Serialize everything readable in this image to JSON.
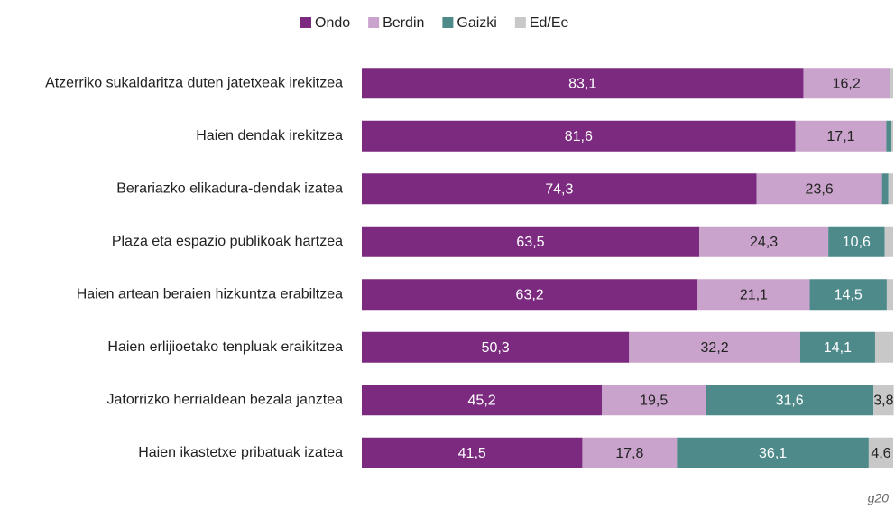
{
  "chart_data": {
    "type": "stacked-bar-horizontal",
    "categories": [
      "Atzerriko sukaldaritza duten jatetxeak irekitzea",
      "Haien dendak irekitzea",
      "Berariazko elikadura-dendak izatea",
      "Plaza eta espazio publikoak hartzea",
      "Haien artean beraien hizkuntza erabiltzea",
      "Haien erlijioetako tenpluak eraikitzea",
      "Jatorrizko herrialdean bezala janztea",
      "Haien ikastetxe pribatuak izatea"
    ],
    "series": [
      {
        "name": "Ondo",
        "color": "#7b2a7f",
        "values": [
          83.1,
          81.6,
          74.3,
          63.5,
          63.2,
          50.3,
          45.2,
          41.5
        ],
        "value_labels": [
          "83,1",
          "81,6",
          "74,3",
          "63,5",
          "63,2",
          "50,3",
          "45,2",
          "41,5"
        ]
      },
      {
        "name": "Berdin",
        "color": "#c9a3cc",
        "values": [
          16.2,
          17.1,
          23.6,
          24.3,
          21.1,
          32.2,
          19.5,
          17.8
        ],
        "value_labels": [
          "16,2",
          "17,1",
          "23,6",
          "24,3",
          "21,1",
          "32,2",
          "19,5",
          "17,8"
        ]
      },
      {
        "name": "Gaizki",
        "color": "#4f8a8b",
        "values": [
          0.2,
          1.0,
          1.2,
          10.6,
          14.5,
          14.1,
          31.6,
          36.1
        ],
        "value_labels": [
          null,
          null,
          null,
          "10,6",
          "14,5",
          "14,1",
          "31,6",
          "36,1"
        ]
      },
      {
        "name": "Ed/Ee",
        "color": "#c8c8c8",
        "values": [
          0.5,
          0.3,
          0.9,
          1.6,
          1.2,
          3.4,
          3.8,
          4.6
        ],
        "value_labels": [
          null,
          null,
          null,
          null,
          null,
          null,
          "3,8",
          "4,6"
        ]
      }
    ],
    "xlim": [
      0,
      100
    ],
    "note": "g20"
  }
}
